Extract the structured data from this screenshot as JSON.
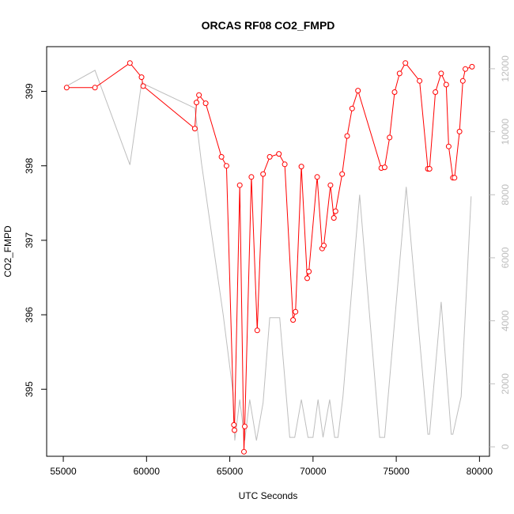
{
  "chart_data": {
    "type": "line",
    "title": "ORCAS RF08 CO2_FMPD",
    "xlabel": "UTC Seconds",
    "ylabel": "CO2_FMPD",
    "xlim": [
      54000,
      80600
    ],
    "ylim": [
      394.1,
      399.6
    ],
    "ylim_right": [
      -300,
      12700
    ],
    "x_ticks": [
      55000,
      60000,
      65000,
      70000,
      75000,
      80000
    ],
    "y_ticks": [
      395,
      396,
      397,
      398,
      399
    ],
    "y_ticks_right": [
      0,
      2000,
      4000,
      6000,
      8000,
      10000,
      12000
    ],
    "legend": "none",
    "grid": false,
    "colors": {
      "co2": "#ff0000",
      "altitude": "#bebebe",
      "axis": "#000000"
    },
    "series": [
      {
        "axis": "left",
        "style": "line+open-circles",
        "x": [
          55200,
          56900,
          59000,
          59700,
          59800,
          62900,
          63000,
          63150,
          63550,
          64500,
          64800,
          65250,
          65280,
          65600,
          65850,
          65900,
          66300,
          66650,
          67000,
          67400,
          67950,
          68300,
          68800,
          68950,
          69300,
          69650,
          69750,
          70250,
          70550,
          70650,
          71050,
          71250,
          71350,
          71750,
          72050,
          72350,
          72700,
          74100,
          74300,
          74600,
          74900,
          75200,
          75550,
          76400,
          76900,
          77000,
          77350,
          77700,
          78000,
          78150,
          78400,
          78500,
          78800,
          79000,
          79150,
          79550
        ],
        "y": [
          399.05,
          399.05,
          399.38,
          399.19,
          399.07,
          398.5,
          398.85,
          398.95,
          398.84,
          398.12,
          398.0,
          394.52,
          394.45,
          397.74,
          394.16,
          394.5,
          397.85,
          395.79,
          397.89,
          398.12,
          398.16,
          398.02,
          395.93,
          396.04,
          397.99,
          396.49,
          396.58,
          397.85,
          396.89,
          396.93,
          397.74,
          397.3,
          397.39,
          397.89,
          398.4,
          398.77,
          399.01,
          397.97,
          397.98,
          398.38,
          398.99,
          399.24,
          399.38,
          399.14,
          397.96,
          397.96,
          398.99,
          399.24,
          399.09,
          398.26,
          397.84,
          397.84,
          398.46,
          399.14,
          399.3,
          399.33
        ]
      },
      {
        "axis": "right",
        "style": "line",
        "x": [
          55200,
          56900,
          59000,
          59700,
          62900,
          63300,
          64600,
          65200,
          65300,
          65600,
          65900,
          66200,
          66600,
          67000,
          67400,
          68000,
          68600,
          68900,
          69300,
          69700,
          70000,
          70300,
          70600,
          71000,
          71300,
          71500,
          71800,
          72800,
          74000,
          74300,
          75600,
          76900,
          77000,
          77700,
          78300,
          78400,
          78900,
          79500
        ],
        "y": [
          11450,
          11950,
          8950,
          11550,
          10750,
          9000,
          4200,
          1700,
          200,
          1500,
          200,
          1500,
          200,
          1400,
          4100,
          4100,
          300,
          300,
          1500,
          300,
          300,
          1500,
          300,
          1500,
          300,
          300,
          1600,
          8000,
          300,
          300,
          8250,
          400,
          400,
          4600,
          400,
          400,
          1600,
          7950
        ]
      }
    ]
  }
}
